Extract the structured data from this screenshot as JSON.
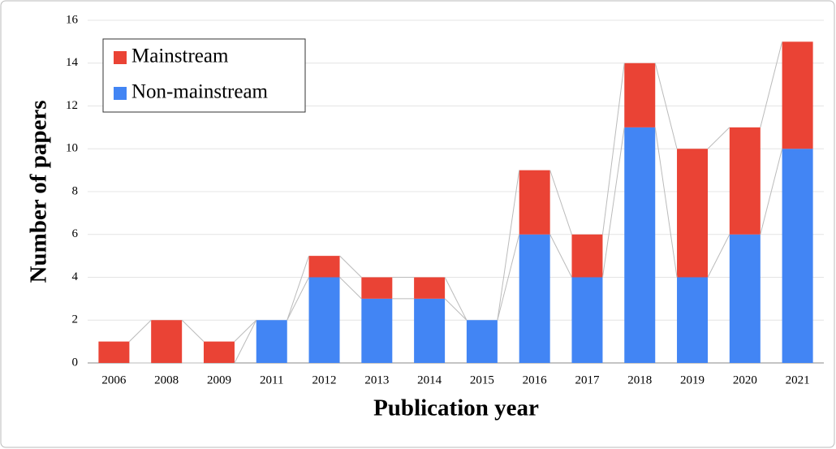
{
  "chart_data": {
    "type": "stacked_bar",
    "xlabel": "Publication year",
    "ylabel": "Number of papers",
    "categories": [
      "2006",
      "2008",
      "2009",
      "2011",
      "2012",
      "2013",
      "2014",
      "2015",
      "2016",
      "2017",
      "2018",
      "2019",
      "2020",
      "2021"
    ],
    "series": [
      {
        "name": "Non-mainstream",
        "color": "#4285f4",
        "values": [
          0,
          0,
          0,
          2,
          4,
          3,
          3,
          2,
          6,
          4,
          11,
          4,
          6,
          10
        ]
      },
      {
        "name": "Mainstream",
        "color": "#ea4335",
        "values": [
          1,
          2,
          1,
          0,
          1,
          1,
          1,
          0,
          3,
          2,
          3,
          6,
          5,
          5
        ]
      }
    ],
    "ylim": [
      0,
      16
    ],
    "yticks": [
      0,
      2,
      4,
      6,
      8,
      10,
      12,
      14,
      16
    ],
    "grid": true,
    "legend": "upper left"
  }
}
